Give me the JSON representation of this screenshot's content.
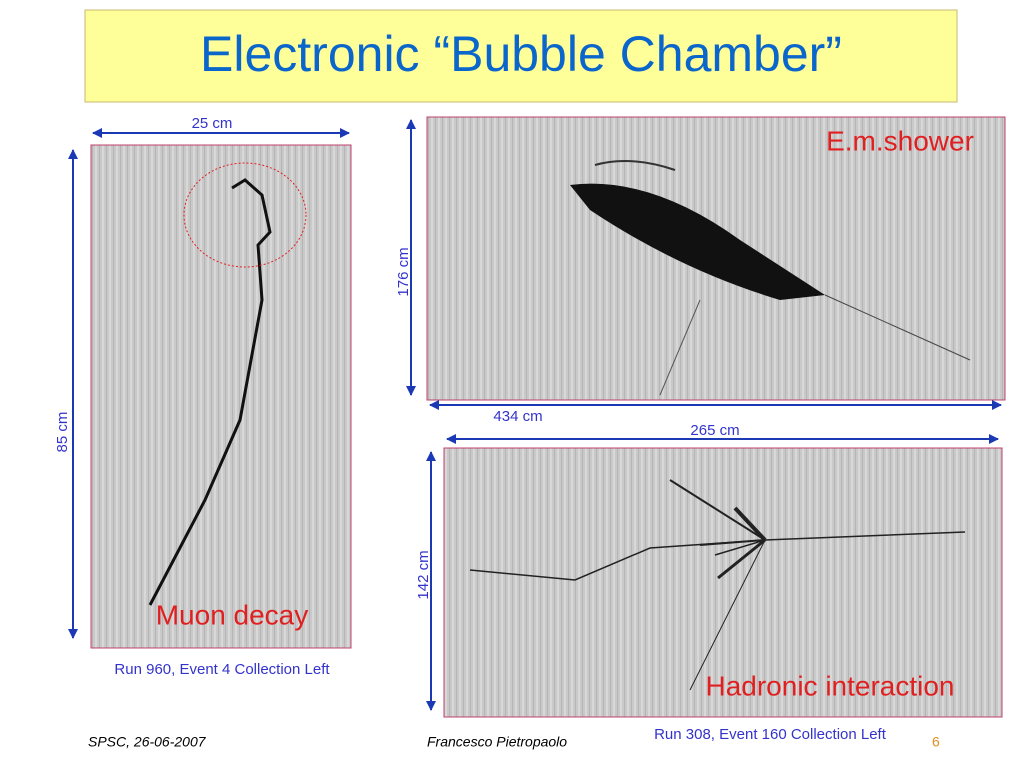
{
  "title": "Electronic “Bubble Chamber”",
  "panels": [
    {
      "width_label": "25 cm",
      "height_label": "85 cm",
      "label": "Muon decay",
      "caption": "Run 960, Event 4   Collection Left"
    },
    {
      "width_label": "434 cm",
      "height_label": "176 cm",
      "label": "E.m.shower"
    },
    {
      "width_label": "265 cm",
      "height_label": "142 cm",
      "label": "Hadronic interaction",
      "caption": "Run 308, Event 160   Collection Left"
    }
  ],
  "footer": {
    "venue": "SPSC, 26-06-2007",
    "author": "Francesco Pietropaolo",
    "page": "6"
  }
}
